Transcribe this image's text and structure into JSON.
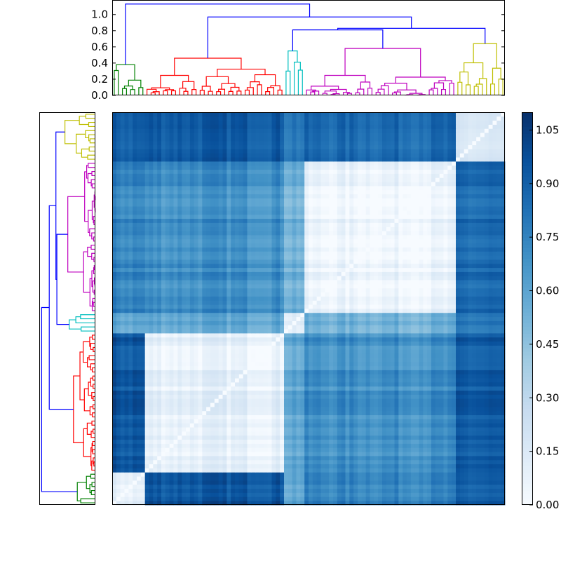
{
  "chart_data": {
    "type": "heatmap",
    "title": "",
    "colormap": "Blues",
    "colorbar": {
      "range": [
        0.0,
        1.1
      ],
      "tick_labels": [
        "0.00",
        "0.15",
        "0.30",
        "0.45",
        "0.60",
        "0.75",
        "0.90",
        "1.05"
      ],
      "tick_values": [
        0.0,
        0.15,
        0.3,
        0.45,
        0.6,
        0.75,
        0.9,
        1.05
      ]
    },
    "dendrogram_top": {
      "ylim": [
        0.0,
        1.18
      ],
      "tick_labels": [
        "0.0",
        "0.2",
        "0.4",
        "0.6",
        "0.8",
        "1.0"
      ],
      "tick_values": [
        0.0,
        0.2,
        0.4,
        0.6,
        0.8,
        1.0
      ],
      "root_height": 1.13
    },
    "dendrogram_left": {
      "orientation": "left",
      "mirrors_top": true
    },
    "clusters": [
      {
        "color": "#008000",
        "size": 8,
        "merge_height": 0.38,
        "leaf_order": 1
      },
      {
        "color": "#ff0000",
        "size": 34,
        "merge_height": 0.46,
        "leaf_order": 2
      },
      {
        "color": "#00bfbf",
        "size": 5,
        "merge_height": 0.55,
        "leaf_order": 3
      },
      {
        "color": "#bf00bf",
        "size": 37,
        "merge_height": 0.58,
        "leaf_order": 4
      },
      {
        "color": "#bfbf00",
        "size": 12,
        "merge_height": 0.64,
        "leaf_order": 5
      }
    ],
    "tree_color": "#0000ff",
    "merges": {
      "green_red": 0.81,
      "cyan_magenta": 0.81,
      "magenta_yellow_group": 0.83,
      "red_with_rest": 0.97,
      "root": 1.13
    },
    "between_cluster_distance": [
      [
        0.1,
        0.95,
        0.6,
        0.75,
        0.9
      ],
      [
        0.95,
        0.1,
        0.6,
        0.7,
        0.92
      ],
      [
        0.6,
        0.6,
        0.15,
        0.55,
        0.8
      ],
      [
        0.75,
        0.7,
        0.55,
        0.05,
        0.85
      ],
      [
        0.9,
        0.92,
        0.8,
        0.85,
        0.15
      ]
    ]
  }
}
